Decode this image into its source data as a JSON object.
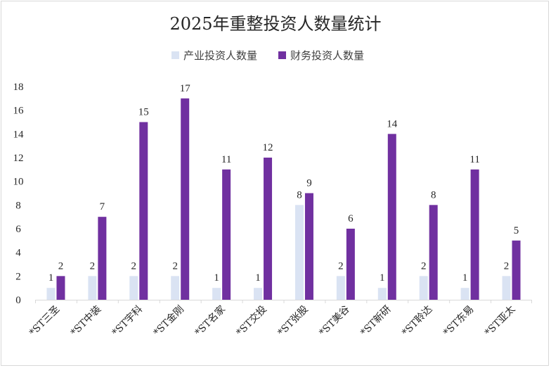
{
  "chart_data": {
    "type": "bar",
    "title": "2025年重整投资人数量统计",
    "categories": [
      "*ST三圣",
      "*ST中装",
      "*ST宇科",
      "*ST金刚",
      "*ST名家",
      "*ST交投",
      "*ST张股",
      "*ST美谷",
      "*ST新研",
      "*ST聆达",
      "*ST东易",
      "*ST亚太"
    ],
    "series": [
      {
        "name": "产业投资人数量",
        "color": "#dae3f3",
        "values": [
          1,
          2,
          2,
          2,
          1,
          1,
          8,
          2,
          1,
          2,
          1,
          2
        ]
      },
      {
        "name": "财务投资人数量",
        "color": "#7030a0",
        "values": [
          2,
          7,
          15,
          17,
          11,
          12,
          9,
          6,
          14,
          8,
          11,
          5
        ]
      }
    ],
    "ylim": [
      0,
      18
    ],
    "yticks": [
      0,
      2,
      4,
      6,
      8,
      10,
      12,
      14,
      16,
      18
    ],
    "legend_position": "top-center",
    "grid": false,
    "data_labels": true
  }
}
